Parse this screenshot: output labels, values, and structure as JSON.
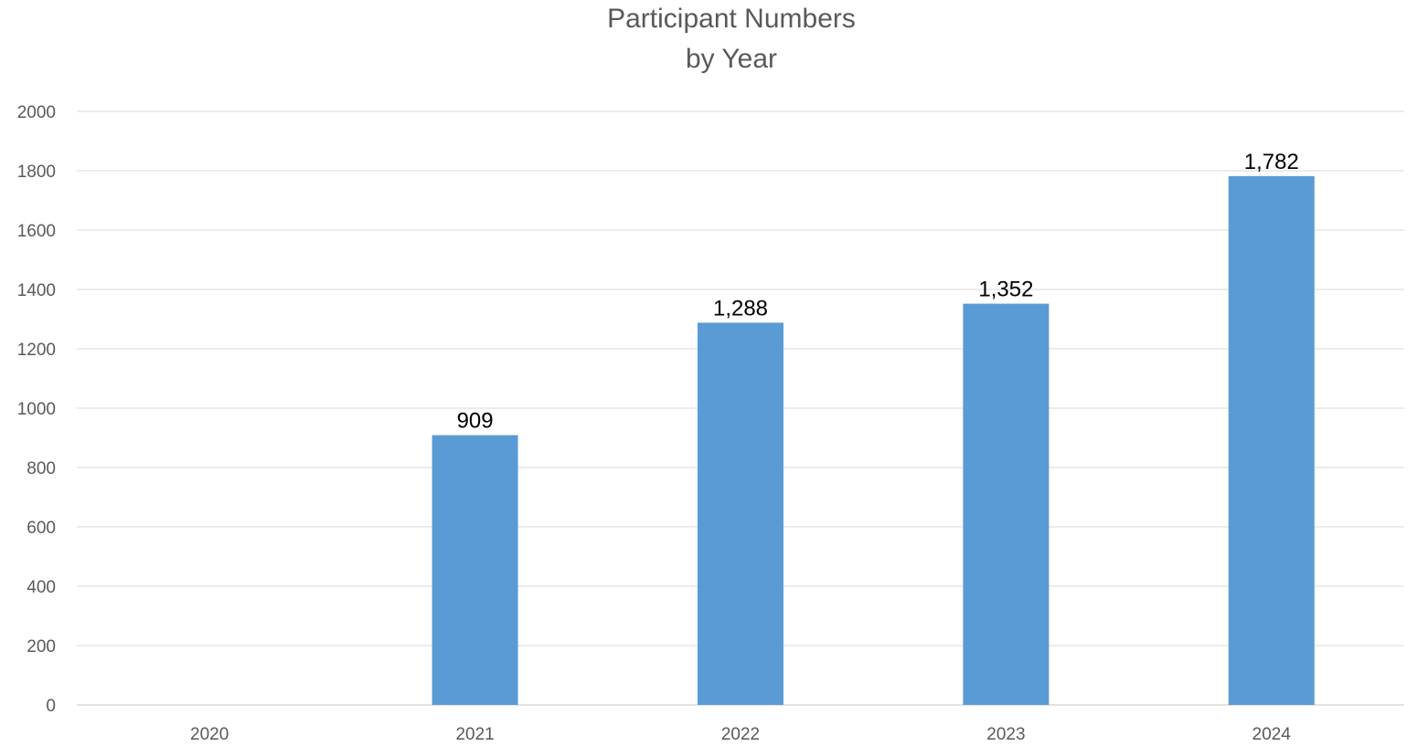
{
  "chart_data": {
    "type": "bar",
    "title_lines": [
      "Participant Numbers",
      "by Year"
    ],
    "categories": [
      "2020",
      "2021",
      "2022",
      "2023",
      "2024"
    ],
    "values": [
      0,
      909,
      1288,
      1352,
      1782
    ],
    "data_labels": [
      "",
      "909",
      "1,288",
      "1,352",
      "1,782"
    ],
    "y_ticks": [
      "0",
      "200",
      "400",
      "600",
      "800",
      "1000",
      "1200",
      "1400",
      "1600",
      "1800",
      "2000"
    ],
    "ylim": [
      0,
      2000
    ],
    "xlabel": "",
    "ylabel": "",
    "grid": true,
    "legend": "none",
    "bar_color": "#5B9BD5",
    "grid_color": "#D9D9D9"
  }
}
